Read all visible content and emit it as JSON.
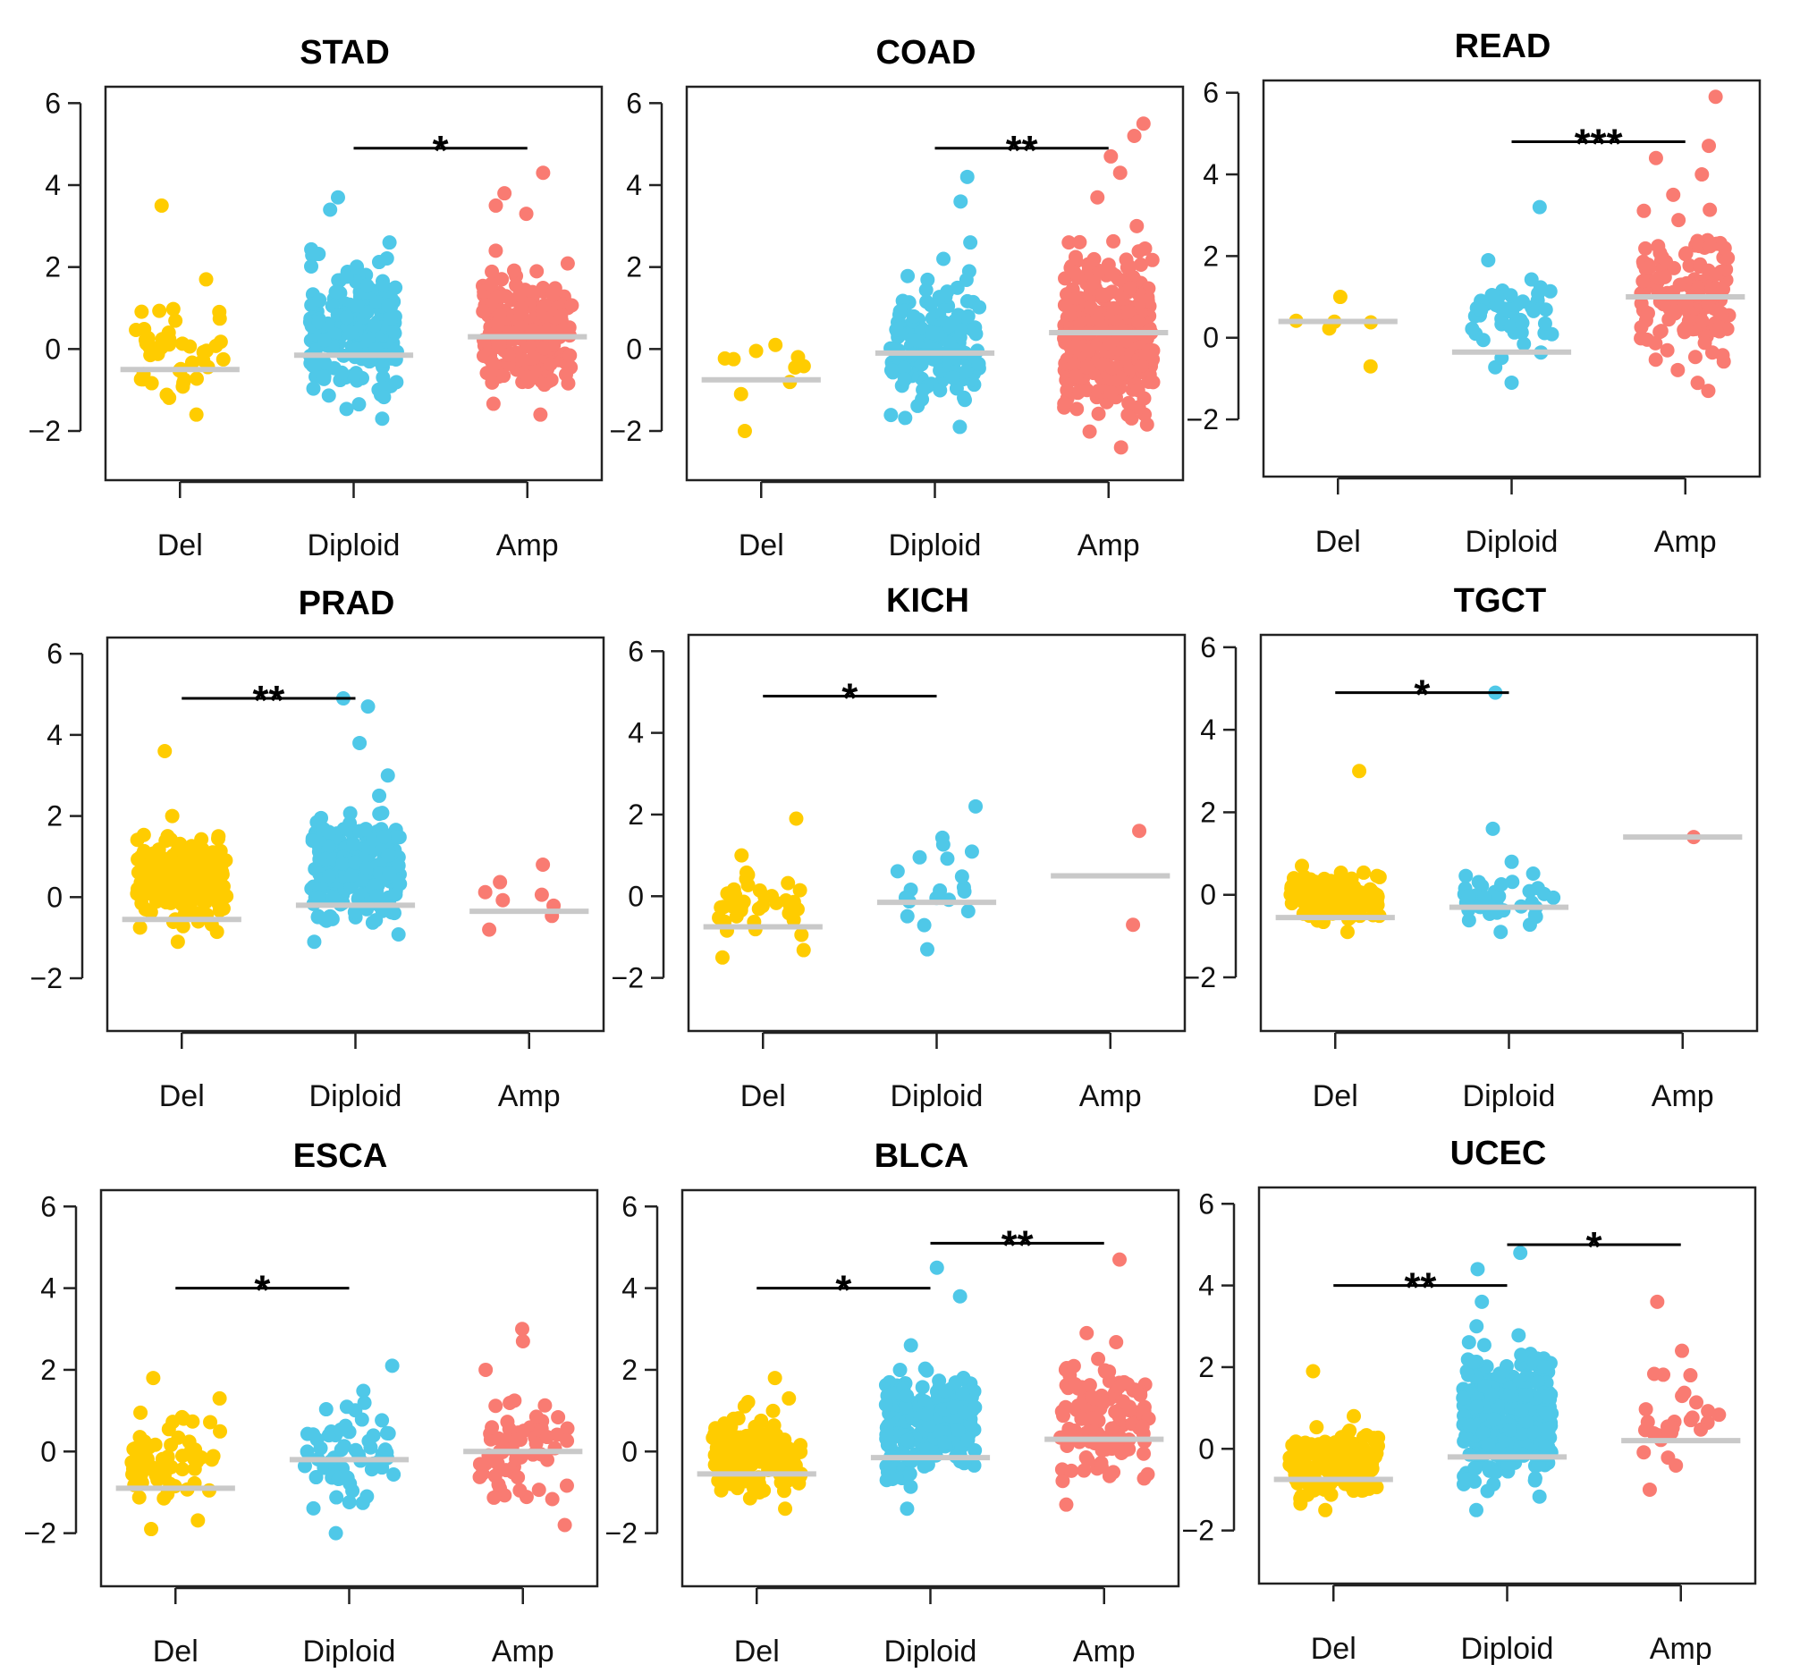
{
  "chart_data": [
    {
      "type": "scatter",
      "title": "STAD",
      "categories": [
        "Del",
        "Diploid",
        "Amp"
      ],
      "colors": [
        "#FFCC00",
        "#4FC8E8",
        "#F97B72"
      ],
      "median_color": "#C9C9C9",
      "ylim": [
        -3.2,
        6.4
      ],
      "yticks": [
        -2,
        0,
        2,
        4,
        6
      ],
      "groups": [
        {
          "name": "Del",
          "n": 45,
          "min": -1.6,
          "max": 1.7,
          "outliers": [
            3.5
          ],
          "median": -0.5
        },
        {
          "name": "Diploid",
          "n": 200,
          "min": -1.7,
          "max": 2.6,
          "outliers": [
            3.7,
            3.4
          ],
          "median": -0.15
        },
        {
          "name": "Amp",
          "n": 230,
          "min": -1.6,
          "max": 2.4,
          "outliers": [
            4.3,
            3.8,
            3.5,
            3.3
          ],
          "median": 0.3
        }
      ],
      "comparisons": [
        {
          "from": "Diploid",
          "to": "Amp",
          "label": "*",
          "y": 4.9
        }
      ]
    },
    {
      "type": "scatter",
      "title": "COAD",
      "categories": [
        "Del",
        "Diploid",
        "Amp"
      ],
      "colors": [
        "#FFCC00",
        "#4FC8E8",
        "#F97B72"
      ],
      "median_color": "#C9C9C9",
      "ylim": [
        -3.2,
        6.4
      ],
      "yticks": [
        -2,
        0,
        2,
        4,
        6
      ],
      "groups": [
        {
          "name": "Del",
          "n": 9,
          "min": -1.1,
          "max": 0.1,
          "outliers": [
            -2.0
          ],
          "median": -0.75
        },
        {
          "name": "Diploid",
          "n": 150,
          "min": -1.9,
          "max": 2.2,
          "outliers": [
            4.2,
            3.6,
            2.6
          ],
          "median": -0.1
        },
        {
          "name": "Amp",
          "n": 340,
          "min": -2.4,
          "max": 3.0,
          "outliers": [
            5.5,
            5.2,
            4.7,
            4.3,
            3.7
          ],
          "median": 0.4
        }
      ],
      "comparisons": [
        {
          "from": "Diploid",
          "to": "Amp",
          "label": "**",
          "y": 4.9
        }
      ]
    },
    {
      "type": "scatter",
      "title": "READ",
      "categories": [
        "Del",
        "Diploid",
        "Amp"
      ],
      "colors": [
        "#FFCC00",
        "#4FC8E8",
        "#F97B72"
      ],
      "median_color": "#C9C9C9",
      "ylim": [
        -3.4,
        6.3
      ],
      "yticks": [
        -2,
        0,
        2,
        4,
        6
      ],
      "groups": [
        {
          "name": "Del",
          "n": 6,
          "min": -0.7,
          "max": 1.0,
          "outliers": [],
          "median": 0.4
        },
        {
          "name": "Diploid",
          "n": 45,
          "min": -1.1,
          "max": 1.9,
          "outliers": [
            3.2
          ],
          "median": -0.35
        },
        {
          "name": "Amp",
          "n": 130,
          "min": -1.3,
          "max": 3.5,
          "outliers": [
            5.9,
            4.7,
            4.4,
            4.0
          ],
          "median": 1.0
        }
      ],
      "comparisons": [
        {
          "from": "Diploid",
          "to": "Amp",
          "label": "***",
          "y": 4.8
        }
      ]
    },
    {
      "type": "scatter",
      "title": "PRAD",
      "categories": [
        "Del",
        "Diploid",
        "Amp"
      ],
      "colors": [
        "#FFCC00",
        "#4FC8E8",
        "#F97B72"
      ],
      "median_color": "#C9C9C9",
      "ylim": [
        -3.3,
        6.4
      ],
      "yticks": [
        -2,
        0,
        2,
        4,
        6
      ],
      "groups": [
        {
          "name": "Del",
          "n": 230,
          "min": -1.1,
          "max": 2.0,
          "outliers": [
            3.6
          ],
          "median": -0.55
        },
        {
          "name": "Diploid",
          "n": 220,
          "min": -1.1,
          "max": 2.5,
          "outliers": [
            4.9,
            4.7,
            3.8,
            3.0
          ],
          "median": -0.2
        },
        {
          "name": "Amp",
          "n": 8,
          "min": -0.8,
          "max": 0.8,
          "outliers": [],
          "median": -0.35
        }
      ],
      "comparisons": [
        {
          "from": "Del",
          "to": "Diploid",
          "label": "**",
          "y": 4.9
        }
      ]
    },
    {
      "type": "scatter",
      "title": "KICH",
      "categories": [
        "Del",
        "Diploid",
        "Amp"
      ],
      "colors": [
        "#FFCC00",
        "#4FC8E8",
        "#F97B72"
      ],
      "median_color": "#C9C9C9",
      "ylim": [
        -3.3,
        6.4
      ],
      "yticks": [
        -2,
        0,
        2,
        4,
        6
      ],
      "groups": [
        {
          "name": "Del",
          "n": 40,
          "min": -1.5,
          "max": 1.0,
          "outliers": [
            1.9
          ],
          "median": -0.75
        },
        {
          "name": "Diploid",
          "n": 20,
          "min": -1.3,
          "max": 2.2,
          "outliers": [],
          "median": -0.15
        },
        {
          "name": "Amp",
          "n": 2,
          "min": -0.7,
          "max": 1.6,
          "outliers": [],
          "median": 0.5
        }
      ],
      "comparisons": [
        {
          "from": "Del",
          "to": "Diploid",
          "label": "*",
          "y": 4.9
        }
      ]
    },
    {
      "type": "scatter",
      "title": "TGCT",
      "categories": [
        "Del",
        "Diploid",
        "Amp"
      ],
      "colors": [
        "#FFCC00",
        "#4FC8E8",
        "#F97B72"
      ],
      "median_color": "#C9C9C9",
      "ylim": [
        -3.3,
        6.3
      ],
      "yticks": [
        -2,
        0,
        2,
        4,
        6
      ],
      "groups": [
        {
          "name": "Del",
          "n": 150,
          "min": -0.9,
          "max": 0.7,
          "outliers": [
            3.0
          ],
          "median": -0.55
        },
        {
          "name": "Diploid",
          "n": 40,
          "min": -0.9,
          "max": 0.8,
          "outliers": [
            4.9,
            1.6
          ],
          "median": -0.3
        },
        {
          "name": "Amp",
          "n": 1,
          "min": 1.4,
          "max": 1.4,
          "outliers": [],
          "median": 1.4
        }
      ],
      "comparisons": [
        {
          "from": "Del",
          "to": "Diploid",
          "label": "*",
          "y": 4.9
        }
      ]
    },
    {
      "type": "scatter",
      "title": "ESCA",
      "categories": [
        "Del",
        "Diploid",
        "Amp"
      ],
      "colors": [
        "#FFCC00",
        "#4FC8E8",
        "#F97B72"
      ],
      "median_color": "#C9C9C9",
      "ylim": [
        -3.3,
        6.4
      ],
      "yticks": [
        -2,
        0,
        2,
        4,
        6
      ],
      "groups": [
        {
          "name": "Del",
          "n": 60,
          "min": -1.9,
          "max": 1.3,
          "outliers": [
            1.8
          ],
          "median": -0.9
        },
        {
          "name": "Diploid",
          "n": 60,
          "min": -2.0,
          "max": 2.1,
          "outliers": [],
          "median": -0.2
        },
        {
          "name": "Amp",
          "n": 60,
          "min": -1.8,
          "max": 2.0,
          "outliers": [
            3.0,
            2.7
          ],
          "median": 0.0
        }
      ],
      "comparisons": [
        {
          "from": "Del",
          "to": "Diploid",
          "label": "*",
          "y": 4.0
        }
      ]
    },
    {
      "type": "scatter",
      "title": "BLCA",
      "categories": [
        "Del",
        "Diploid",
        "Amp"
      ],
      "colors": [
        "#FFCC00",
        "#4FC8E8",
        "#F97B72"
      ],
      "median_color": "#C9C9C9",
      "ylim": [
        -3.3,
        6.4
      ],
      "yticks": [
        -2,
        0,
        2,
        4,
        6
      ],
      "groups": [
        {
          "name": "Del",
          "n": 150,
          "min": -1.4,
          "max": 1.3,
          "outliers": [
            1.8
          ],
          "median": -0.55
        },
        {
          "name": "Diploid",
          "n": 200,
          "min": -1.4,
          "max": 2.6,
          "outliers": [
            4.5,
            3.8
          ],
          "median": -0.15
        },
        {
          "name": "Amp",
          "n": 130,
          "min": -1.3,
          "max": 2.9,
          "outliers": [
            4.7
          ],
          "median": 0.3
        }
      ],
      "comparisons": [
        {
          "from": "Del",
          "to": "Diploid",
          "label": "*",
          "y": 4.0
        },
        {
          "from": "Diploid",
          "to": "Amp",
          "label": "**",
          "y": 5.1
        }
      ]
    },
    {
      "type": "scatter",
      "title": "UCEC",
      "categories": [
        "Del",
        "Diploid",
        "Amp"
      ],
      "colors": [
        "#FFCC00",
        "#4FC8E8",
        "#F97B72"
      ],
      "median_color": "#C9C9C9",
      "ylim": [
        -3.3,
        6.4
      ],
      "yticks": [
        -2,
        0,
        2,
        4,
        6
      ],
      "groups": [
        {
          "name": "Del",
          "n": 150,
          "min": -1.5,
          "max": 0.8,
          "outliers": [
            1.9
          ],
          "median": -0.75
        },
        {
          "name": "Diploid",
          "n": 330,
          "min": -1.5,
          "max": 3.0,
          "outliers": [
            4.8,
            4.4,
            3.6
          ],
          "median": -0.2
        },
        {
          "name": "Amp",
          "n": 30,
          "min": -1.0,
          "max": 2.4,
          "outliers": [
            3.6
          ],
          "median": 0.2
        }
      ],
      "comparisons": [
        {
          "from": "Del",
          "to": "Diploid",
          "label": "**",
          "y": 4.0
        },
        {
          "from": "Diploid",
          "to": "Amp",
          "label": "*",
          "y": 5.0
        }
      ]
    }
  ]
}
